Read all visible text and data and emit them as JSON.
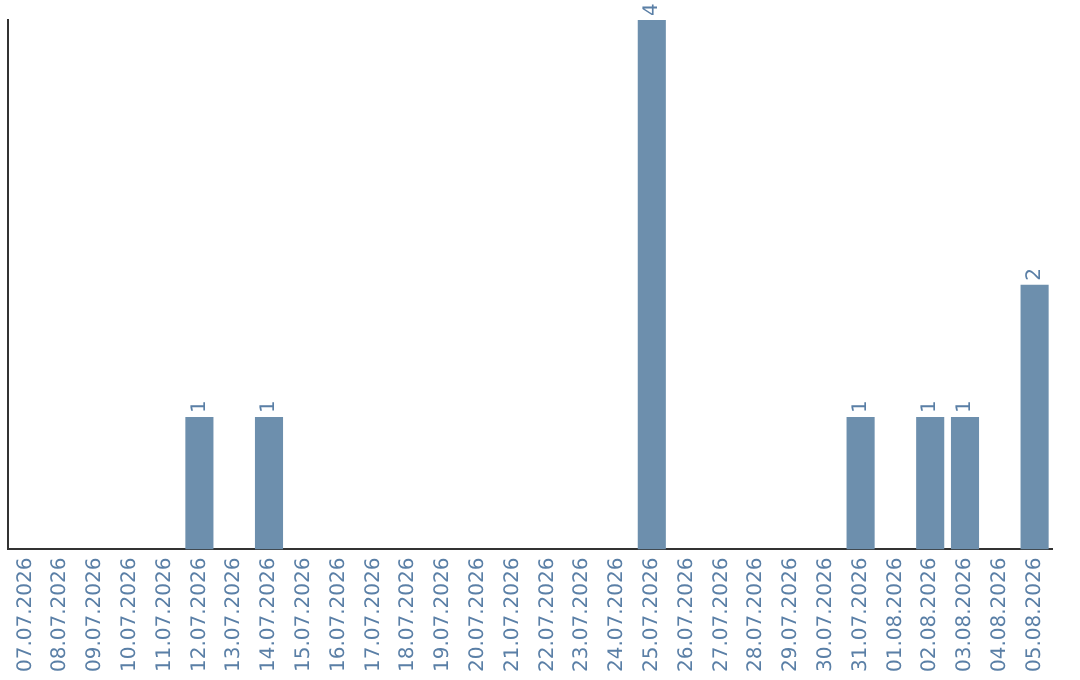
{
  "chart_data": {
    "type": "bar",
    "categories": [
      "07.07.2026",
      "08.07.2026",
      "09.07.2026",
      "10.07.2026",
      "11.07.2026",
      "12.07.2026",
      "13.07.2026",
      "14.07.2026",
      "15.07.2026",
      "16.07.2026",
      "17.07.2026",
      "18.07.2026",
      "19.07.2026",
      "20.07.2026",
      "21.07.2026",
      "22.07.2026",
      "23.07.2026",
      "24.07.2026",
      "25.07.2026",
      "26.07.2026",
      "27.07.2026",
      "28.07.2026",
      "29.07.2026",
      "30.07.2026",
      "31.07.2026",
      "01.08.2026",
      "02.08.2026",
      "03.08.2026",
      "04.08.2026",
      "05.08.2026"
    ],
    "values": [
      0,
      0,
      0,
      0,
      0,
      1,
      0,
      1,
      0,
      0,
      0,
      0,
      0,
      0,
      0,
      0,
      0,
      0,
      4,
      0,
      0,
      0,
      0,
      0,
      1,
      0,
      1,
      1,
      0,
      2
    ],
    "value_labels": [
      null,
      null,
      null,
      null,
      null,
      "1",
      null,
      "1",
      null,
      null,
      null,
      null,
      null,
      null,
      null,
      null,
      null,
      null,
      "4",
      null,
      null,
      null,
      null,
      null,
      "1",
      null,
      "1",
      "1",
      null,
      "2"
    ],
    "color": "#6d8fad",
    "grid": false,
    "legend": false,
    "tick_labels": "x"
  }
}
